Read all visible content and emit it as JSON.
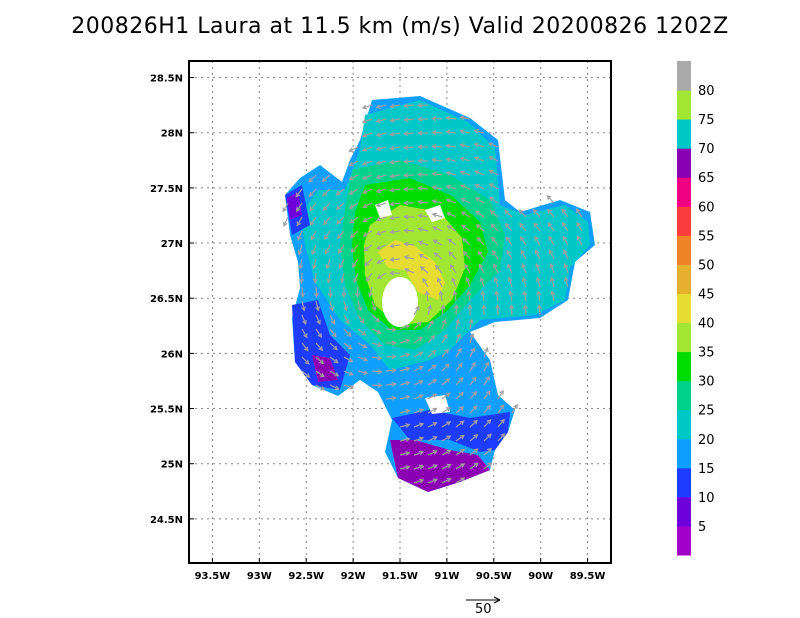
{
  "title": "200826H1 Laura at 11.5 km (m/s) Valid 20200826 1202Z",
  "map": {
    "lat_labels": [
      "28.5N",
      "28N",
      "27.5N",
      "27N",
      "26.5N",
      "26N",
      "25.5N",
      "25N",
      "24.5N"
    ],
    "lat_values": [
      28.5,
      28,
      27.5,
      27,
      26.5,
      26,
      25.5,
      25,
      24.5
    ],
    "lon_labels": [
      "93.5W",
      "93W",
      "92.5W",
      "92W",
      "91.5W",
      "91W",
      "90.5W",
      "90W",
      "89.5W"
    ],
    "lon_values": [
      -93.5,
      -93,
      -92.5,
      -92,
      -91.5,
      -91,
      -90.5,
      -90,
      -89.5
    ],
    "lat_range": [
      24.1,
      28.65
    ],
    "lon_range": [
      -93.75,
      -89.25
    ],
    "grid": "dotted",
    "storm_center": {
      "lat": 26.5,
      "lon": -91.55
    },
    "vector_reference": {
      "label": "50",
      "value": 50
    }
  },
  "colorbar": {
    "labels": [
      "5",
      "10",
      "15",
      "20",
      "25",
      "30",
      "35",
      "40",
      "45",
      "50",
      "55",
      "60",
      "65",
      "70",
      "75",
      "80"
    ],
    "colors": [
      "#a000c8",
      "#6e00dc",
      "#1e3cff",
      "#0fa0ff",
      "#00c8c8",
      "#00d28c",
      "#00dc00",
      "#a0e632",
      "#e6dc32",
      "#e6af2d",
      "#f08228",
      "#fa3c3c",
      "#f00082",
      "#8c00b4",
      "#00c8c8",
      "#a0e632",
      "#aaaaaa"
    ]
  },
  "colors": {
    "vector": "#a0a0a0",
    "frame": "#000000",
    "grid": "#888888"
  }
}
